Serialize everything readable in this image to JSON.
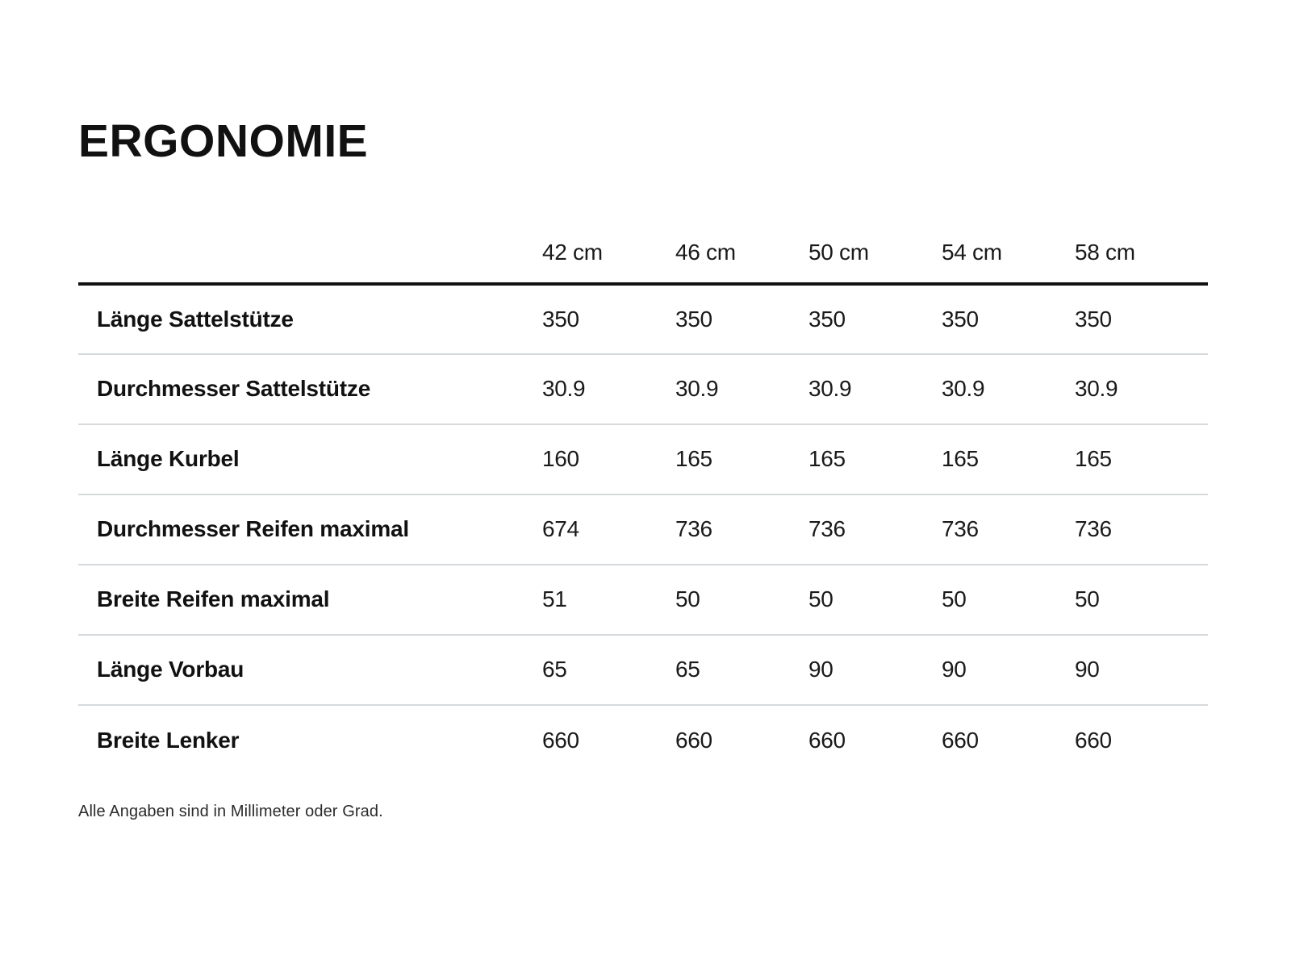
{
  "header": {
    "title": "ERGONOMIE"
  },
  "table": {
    "size_columns": [
      "42 cm",
      "46 cm",
      "50 cm",
      "54 cm",
      "58 cm"
    ],
    "rows": [
      {
        "label": "Länge Sattelstütze",
        "values": [
          "350",
          "350",
          "350",
          "350",
          "350"
        ]
      },
      {
        "label": "Durchmesser Sattelstütze",
        "values": [
          "30.9",
          "30.9",
          "30.9",
          "30.9",
          "30.9"
        ]
      },
      {
        "label": "Länge Kurbel",
        "values": [
          "160",
          "165",
          "165",
          "165",
          "165"
        ]
      },
      {
        "label": "Durchmesser Reifen maximal",
        "values": [
          "674",
          "736",
          "736",
          "736",
          "736"
        ]
      },
      {
        "label": "Breite Reifen maximal",
        "values": [
          "51",
          "50",
          "50",
          "50",
          "50"
        ]
      },
      {
        "label": "Länge Vorbau",
        "values": [
          "65",
          "65",
          "90",
          "90",
          "90"
        ]
      },
      {
        "label": "Breite Lenker",
        "values": [
          "660",
          "660",
          "660",
          "660",
          "660"
        ]
      }
    ]
  },
  "footer": {
    "note": "Alle Angaben sind in Millimeter oder Grad."
  },
  "colors": {
    "background": "#ffffff",
    "text": "#111111",
    "header_rule": "#111111",
    "row_rule": "#d6d9db"
  }
}
